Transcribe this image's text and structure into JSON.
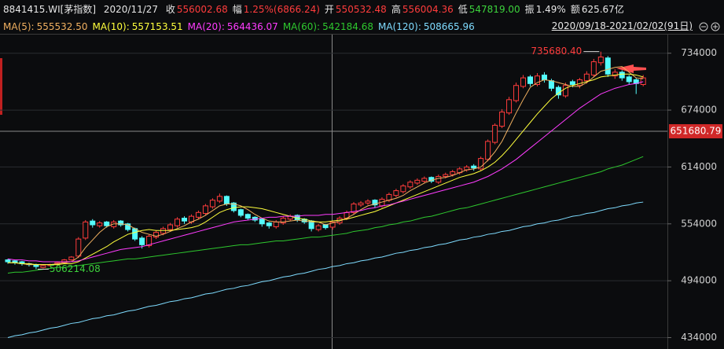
{
  "header": {
    "code": "8841415.WI[茅指数]",
    "date": "2020/11/27",
    "items": [
      {
        "label": "收",
        "value": "556002.68",
        "color": "#ff3c3c"
      },
      {
        "label": "幅",
        "value": "1.25%(6866.24)",
        "color": "#ff3c3c"
      },
      {
        "label": "开",
        "value": "550532.48",
        "color": "#ff3c3c"
      },
      {
        "label": "高",
        "value": "556004.36",
        "color": "#ff3c3c"
      },
      {
        "label": "低",
        "value": "547819.00",
        "color": "#3cd23c"
      },
      {
        "label": "振",
        "value": "1.49%",
        "color": "#e6e6e6"
      },
      {
        "label": "额",
        "value": "625.67亿",
        "color": "#e6e6e6"
      }
    ],
    "range": "2020/09/18-2021/02/02(91日)"
  },
  "chart_data": {
    "type": "candlestick",
    "up_color": "#ff3c3c",
    "down_color": "#54fcfc",
    "ylim": [
      422000,
      752000
    ],
    "yticks": [
      434000,
      494000,
      554000,
      614000,
      674000,
      734000
    ],
    "grid": true,
    "crosshair_value": 651680.79,
    "max_label": "735680.40",
    "min_label": "506214.08",
    "open": [
      516000,
      515000,
      514000,
      512000,
      511000,
      508000,
      510000,
      511000,
      513000,
      516000,
      520000,
      539000,
      557000,
      552000,
      556000,
      551000,
      557000,
      554000,
      549000,
      539000,
      531000,
      540000,
      544000,
      548000,
      552000,
      560000,
      556000,
      561000,
      565000,
      572000,
      578000,
      583000,
      576000,
      569000,
      564000,
      561000,
      559000,
      555000,
      551000,
      555000,
      559000,
      563000,
      559000,
      557000,
      548000,
      553000,
      550532.48,
      555000,
      560000,
      566000,
      574000,
      576000,
      579000,
      573000,
      579000,
      584000,
      588000,
      593000,
      597000,
      599000,
      603000,
      598000,
      604000,
      606000,
      608000,
      611000,
      615000,
      612000,
      622000,
      640000,
      657000,
      671000,
      684000,
      699000,
      709000,
      701000,
      711000,
      705000,
      698000,
      689000,
      704000,
      700000,
      705000,
      711000,
      724000,
      729000,
      710000,
      714000,
      709000,
      706000,
      701000
    ],
    "high": [
      517000,
      516000,
      515000,
      513000,
      512000,
      511000,
      512000,
      514000,
      517000,
      520000,
      540000,
      558000,
      559000,
      557000,
      557000,
      558000,
      558000,
      555000,
      550000,
      541000,
      543000,
      547000,
      551000,
      555000,
      561000,
      562000,
      564000,
      568000,
      575000,
      581000,
      586000,
      584000,
      577000,
      570000,
      565000,
      562000,
      560000,
      556000,
      558000,
      562000,
      564000,
      564000,
      560000,
      558000,
      554000,
      554000,
      556004.36,
      562000,
      568000,
      577000,
      578000,
      580000,
      580000,
      582000,
      587000,
      591000,
      596000,
      600000,
      602000,
      604000,
      604000,
      606000,
      608000,
      611000,
      614000,
      616000,
      617000,
      625000,
      643000,
      660000,
      675000,
      688000,
      703000,
      711000,
      711000,
      713000,
      714000,
      707000,
      700000,
      703000,
      706000,
      708000,
      715000,
      728000,
      735680.4,
      731000,
      717000,
      716000,
      711000,
      708000,
      711000
    ],
    "low": [
      512000,
      511000,
      510000,
      509000,
      506214.08,
      507000,
      509000,
      510000,
      512000,
      515000,
      518000,
      537000,
      550000,
      550000,
      550000,
      549000,
      551000,
      546000,
      536000,
      528000,
      529000,
      538000,
      542000,
      546000,
      550000,
      554000,
      554000,
      559000,
      563000,
      570000,
      576000,
      573000,
      566000,
      561000,
      558000,
      556000,
      551000,
      549000,
      549000,
      553000,
      557000,
      556000,
      554000,
      546000,
      546000,
      548000,
      547819,
      553000,
      558000,
      564000,
      572000,
      574000,
      571000,
      571000,
      577000,
      582000,
      586000,
      591000,
      595000,
      597000,
      597000,
      596000,
      602000,
      604000,
      606000,
      609000,
      610000,
      610000,
      620000,
      638000,
      655000,
      669000,
      682000,
      697000,
      699000,
      699000,
      703000,
      694000,
      686000,
      687000,
      698000,
      697000,
      702000,
      709000,
      721000,
      709000,
      707000,
      705000,
      701000,
      691000,
      699000
    ],
    "close": [
      514000,
      513000,
      512000,
      511000,
      509000,
      510000,
      511000,
      513000,
      516000,
      519000,
      538000,
      556000,
      553000,
      555000,
      552000,
      556000,
      553000,
      548000,
      538000,
      532000,
      541000,
      545000,
      549000,
      553000,
      559000,
      557000,
      562000,
      566000,
      573000,
      579000,
      583000,
      575000,
      568000,
      563000,
      560000,
      558000,
      554000,
      552000,
      556000,
      560000,
      562000,
      558000,
      556000,
      549000,
      552000,
      550000,
      556002.68,
      560000,
      566000,
      575000,
      576000,
      578000,
      574000,
      580000,
      585000,
      589000,
      594000,
      598000,
      600000,
      602000,
      599000,
      604000,
      606000,
      609000,
      612000,
      614000,
      613000,
      623000,
      641000,
      658000,
      672000,
      685000,
      700000,
      708000,
      702000,
      710000,
      706000,
      697000,
      690000,
      700000,
      701000,
      706000,
      712000,
      725000,
      730000,
      712000,
      714000,
      708000,
      704000,
      702000,
      708000
    ],
    "series": [
      {
        "name": "MA(5):",
        "value_label": "555532.50",
        "color": "#f0b060",
        "values": [
          513000,
          513000,
          512000,
          511000,
          511000,
          511000,
          511000,
          512000,
          513000,
          514000,
          519000,
          529000,
          537000,
          545000,
          551000,
          554000,
          554000,
          553000,
          549000,
          545000,
          543000,
          541000,
          543000,
          546000,
          549000,
          552000,
          556000,
          559000,
          563000,
          568000,
          573000,
          575000,
          575000,
          573000,
          569000,
          564000,
          560000,
          557000,
          556000,
          556000,
          557000,
          558000,
          557000,
          556000,
          556000,
          553000,
          555000,
          557000,
          560000,
          564000,
          569000,
          573000,
          575000,
          577000,
          579000,
          581000,
          584000,
          589000,
          593000,
          597000,
          600000,
          602000,
          603000,
          605000,
          608000,
          611000,
          612000,
          614000,
          621000,
          630000,
          641000,
          656000,
          671000,
          685000,
          698000,
          703000,
          706000,
          705000,
          703000,
          701000,
          699000,
          699000,
          703000,
          709000,
          715000,
          717000,
          719000,
          720000,
          714000,
          708000,
          707000
        ]
      },
      {
        "name": "MA(10):",
        "value_label": "557153.51",
        "color": "#ffff3c",
        "values": [
          513000,
          513000,
          512000,
          512000,
          511000,
          511000,
          511000,
          511000,
          512000,
          512000,
          514000,
          518000,
          522000,
          526000,
          530000,
          535000,
          539000,
          543000,
          545000,
          547000,
          548000,
          547000,
          547000,
          547000,
          548000,
          549000,
          550000,
          552000,
          556000,
          561000,
          566000,
          569000,
          571000,
          572000,
          572000,
          571000,
          570000,
          568000,
          566000,
          564000,
          562000,
          560000,
          559000,
          557000,
          556000,
          556000,
          557000,
          558000,
          559000,
          561000,
          563000,
          565000,
          567000,
          570000,
          573000,
          576000,
          579000,
          582000,
          585000,
          588000,
          591000,
          594000,
          597000,
          600000,
          603000,
          605000,
          607000,
          610000,
          614000,
          619000,
          626000,
          634000,
          643000,
          652000,
          661000,
          670000,
          678000,
          686000,
          692000,
          697000,
          700000,
          702000,
          704000,
          706000,
          709000,
          710000,
          711000,
          712000,
          712000,
          711000,
          709000
        ]
      },
      {
        "name": "MA(20):",
        "value_label": "564436.07",
        "color": "#ff3cff",
        "values": [
          517000,
          516000,
          516000,
          515000,
          515000,
          514000,
          514000,
          514000,
          514000,
          514000,
          515000,
          517000,
          519000,
          521000,
          523000,
          525000,
          527000,
          528000,
          529000,
          530000,
          532000,
          534000,
          536000,
          538000,
          540000,
          542000,
          544000,
          546000,
          548000,
          550000,
          552000,
          554000,
          556000,
          557000,
          558000,
          559000,
          560000,
          561000,
          561000,
          562000,
          562000,
          562000,
          563000,
          563000,
          563000,
          564000,
          564000,
          565000,
          566000,
          567000,
          568000,
          570000,
          571000,
          573000,
          574000,
          576000,
          578000,
          580000,
          582000,
          584000,
          586000,
          588000,
          590000,
          592000,
          594000,
          596000,
          598000,
          601000,
          604000,
          608000,
          612000,
          617000,
          622000,
          628000,
          634000,
          640000,
          646000,
          652000,
          658000,
          664000,
          670000,
          676000,
          681000,
          686000,
          691000,
          694000,
          697000,
          699000,
          701000,
          702000,
          704000
        ]
      },
      {
        "name": "MA(60):",
        "value_label": "542184.68",
        "color": "#2ec82e",
        "values": [
          502000,
          503000,
          503000,
          504000,
          505000,
          506000,
          507000,
          508000,
          508000,
          509000,
          510000,
          511000,
          512000,
          513000,
          514000,
          515000,
          516000,
          517000,
          517000,
          518000,
          519000,
          520000,
          521000,
          522000,
          523000,
          524000,
          525000,
          526000,
          527000,
          528000,
          529000,
          530000,
          531000,
          532000,
          532000,
          533000,
          534000,
          535000,
          536000,
          536000,
          537000,
          538000,
          539000,
          540000,
          540000,
          541000,
          542000,
          543000,
          544000,
          546000,
          547000,
          548000,
          550000,
          551000,
          553000,
          554000,
          556000,
          557000,
          559000,
          561000,
          562000,
          564000,
          566000,
          568000,
          570000,
          571000,
          573000,
          575000,
          577000,
          579000,
          581000,
          583000,
          585000,
          587000,
          589000,
          591000,
          593000,
          595000,
          597000,
          599000,
          601000,
          603000,
          605000,
          607000,
          609000,
          612000,
          614000,
          616000,
          619000,
          622000,
          625000
        ]
      },
      {
        "name": "MA(120):",
        "value_label": "508665.96",
        "color": "#7fdcff",
        "values": [
          434000,
          436000,
          437000,
          439000,
          440000,
          442000,
          444000,
          445000,
          447000,
          449000,
          450000,
          452000,
          454000,
          455000,
          457000,
          458000,
          460000,
          462000,
          463000,
          465000,
          467000,
          468000,
          470000,
          472000,
          473000,
          475000,
          476000,
          478000,
          480000,
          481000,
          483000,
          485000,
          486000,
          488000,
          489000,
          491000,
          493000,
          494000,
          496000,
          498000,
          499000,
          501000,
          502000,
          504000,
          506000,
          507000,
          509000,
          510000,
          512000,
          513000,
          515000,
          516000,
          518000,
          519000,
          521000,
          523000,
          524000,
          526000,
          527000,
          529000,
          530000,
          532000,
          533000,
          535000,
          537000,
          538000,
          540000,
          541000,
          543000,
          544000,
          546000,
          547000,
          549000,
          551000,
          552000,
          554000,
          555000,
          557000,
          558000,
          560000,
          562000,
          563000,
          565000,
          566000,
          568000,
          570000,
          571000,
          573000,
          574000,
          576000,
          577000
        ]
      }
    ]
  }
}
